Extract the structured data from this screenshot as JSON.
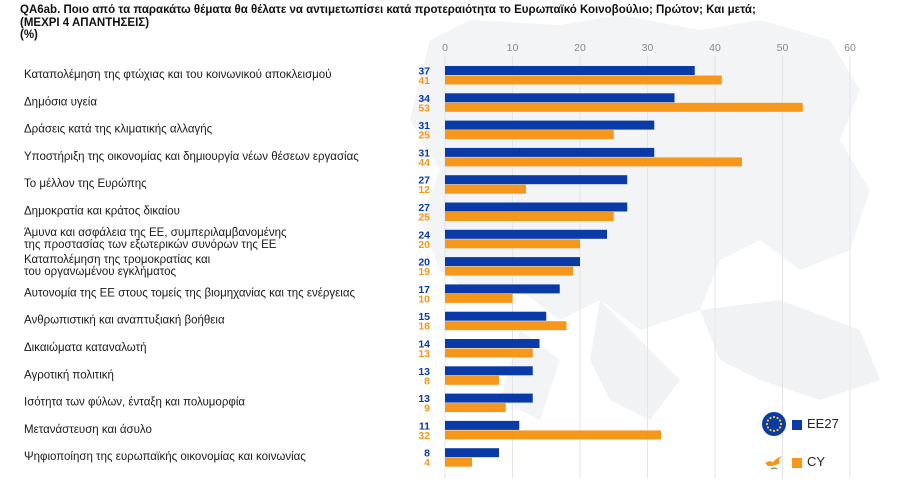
{
  "title_lines": [
    "QA6ab. Ποιο από τα παρακάτω θέματα θα θέλατε να αντιμετωπίσει κατά προτεραιότητα το Ευρωπαϊκό Κοινοβούλιο; Πρώτον; Και μετά;",
    "(ΜΕΧΡΙ 4 ΑΠΑΝΤΗΣΕΙΣ)",
    "(%)"
  ],
  "legend": [
    {
      "label": "EE27",
      "icon": "eu-flag-icon",
      "color": "#0a3aa8"
    },
    {
      "label": "CY",
      "icon": "cyprus-map-icon",
      "color": "#f5971b"
    }
  ],
  "chart_data": {
    "type": "bar",
    "orientation": "horizontal",
    "xlim": [
      0,
      60
    ],
    "xticks": [
      0,
      10,
      20,
      30,
      40,
      50,
      60
    ],
    "grid": true,
    "legend_position": "bottom-right",
    "categories": [
      [
        "Καταπολέμηση της φτώχιας και του κοινωνικού αποκλεισμού"
      ],
      [
        "Δημόσια υγεία"
      ],
      [
        "Δράσεις κατά της κλιματικής αλλαγής"
      ],
      [
        "Υποστήριξη της οικονομίας και δημιουργία νέων θέσεων εργασίας"
      ],
      [
        "Το μέλλον της Ευρώπης"
      ],
      [
        "Δημοκρατία και κράτος δικαίου"
      ],
      [
        "Άμυνα και ασφάλεια της ΕΕ, συμπεριλαμβανομένης",
        "της προστασίας των εξωτερικών συνόρων της ΕΕ"
      ],
      [
        "Καταπολέμηση της τρομοκρατίας και",
        "του οργανωμένου εγκλήματος"
      ],
      [
        "Αυτονομία της ΕΕ στους τομείς της βιομηχανίας και της ενέργειας"
      ],
      [
        "Ανθρωπιστική και αναπτυξιακή βοήθεια"
      ],
      [
        "Δικαιώματα καταναλωτή"
      ],
      [
        "Αγροτική πολιτική"
      ],
      [
        "Ισότητα των φύλων, ένταξη και πολυμορφία"
      ],
      [
        "Μετανάστευση και άσυλο"
      ],
      [
        "Ψηφιοποίηση της ευρωπαϊκής οικονομίας και κοινωνίας"
      ]
    ],
    "series": [
      {
        "name": "EE27",
        "color": "#0a3aa8",
        "values": [
          37,
          34,
          31,
          31,
          27,
          27,
          24,
          20,
          17,
          15,
          14,
          13,
          13,
          11,
          8
        ]
      },
      {
        "name": "CY",
        "color": "#f5971b",
        "values": [
          41,
          53,
          25,
          44,
          12,
          25,
          20,
          19,
          10,
          18,
          13,
          8,
          9,
          32,
          4
        ]
      }
    ]
  }
}
